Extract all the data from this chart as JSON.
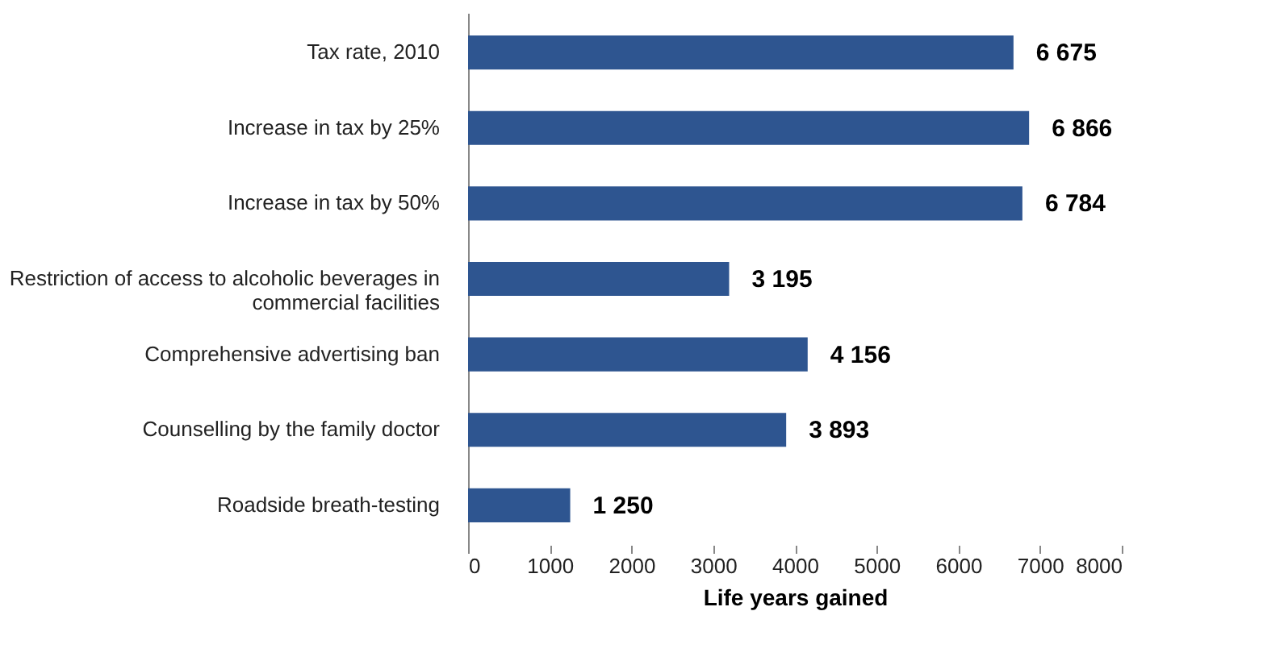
{
  "chart_data": {
    "type": "bar",
    "orientation": "horizontal",
    "xlabel": "Life years gained",
    "categories": [
      "Tax rate, 2010",
      "Increase in tax by 25%",
      "Increase in tax by 50%",
      "Restriction of access to alcoholic beverages in commercial facilities",
      "Comprehensive advertising ban",
      "Counselling by the family doctor",
      "Roadside breath-testing"
    ],
    "values": [
      6675,
      6866,
      6784,
      3195,
      4156,
      3893,
      1250
    ],
    "value_labels": [
      "6 675",
      "6 866",
      "6 784",
      "3 195",
      "4 156",
      "3 893",
      "1 250"
    ],
    "color": "#2e5590",
    "xlim": [
      0,
      8000
    ],
    "xticks": [
      0,
      1000,
      2000,
      3000,
      4000,
      5000,
      6000,
      7000,
      8000
    ],
    "grid": false
  }
}
